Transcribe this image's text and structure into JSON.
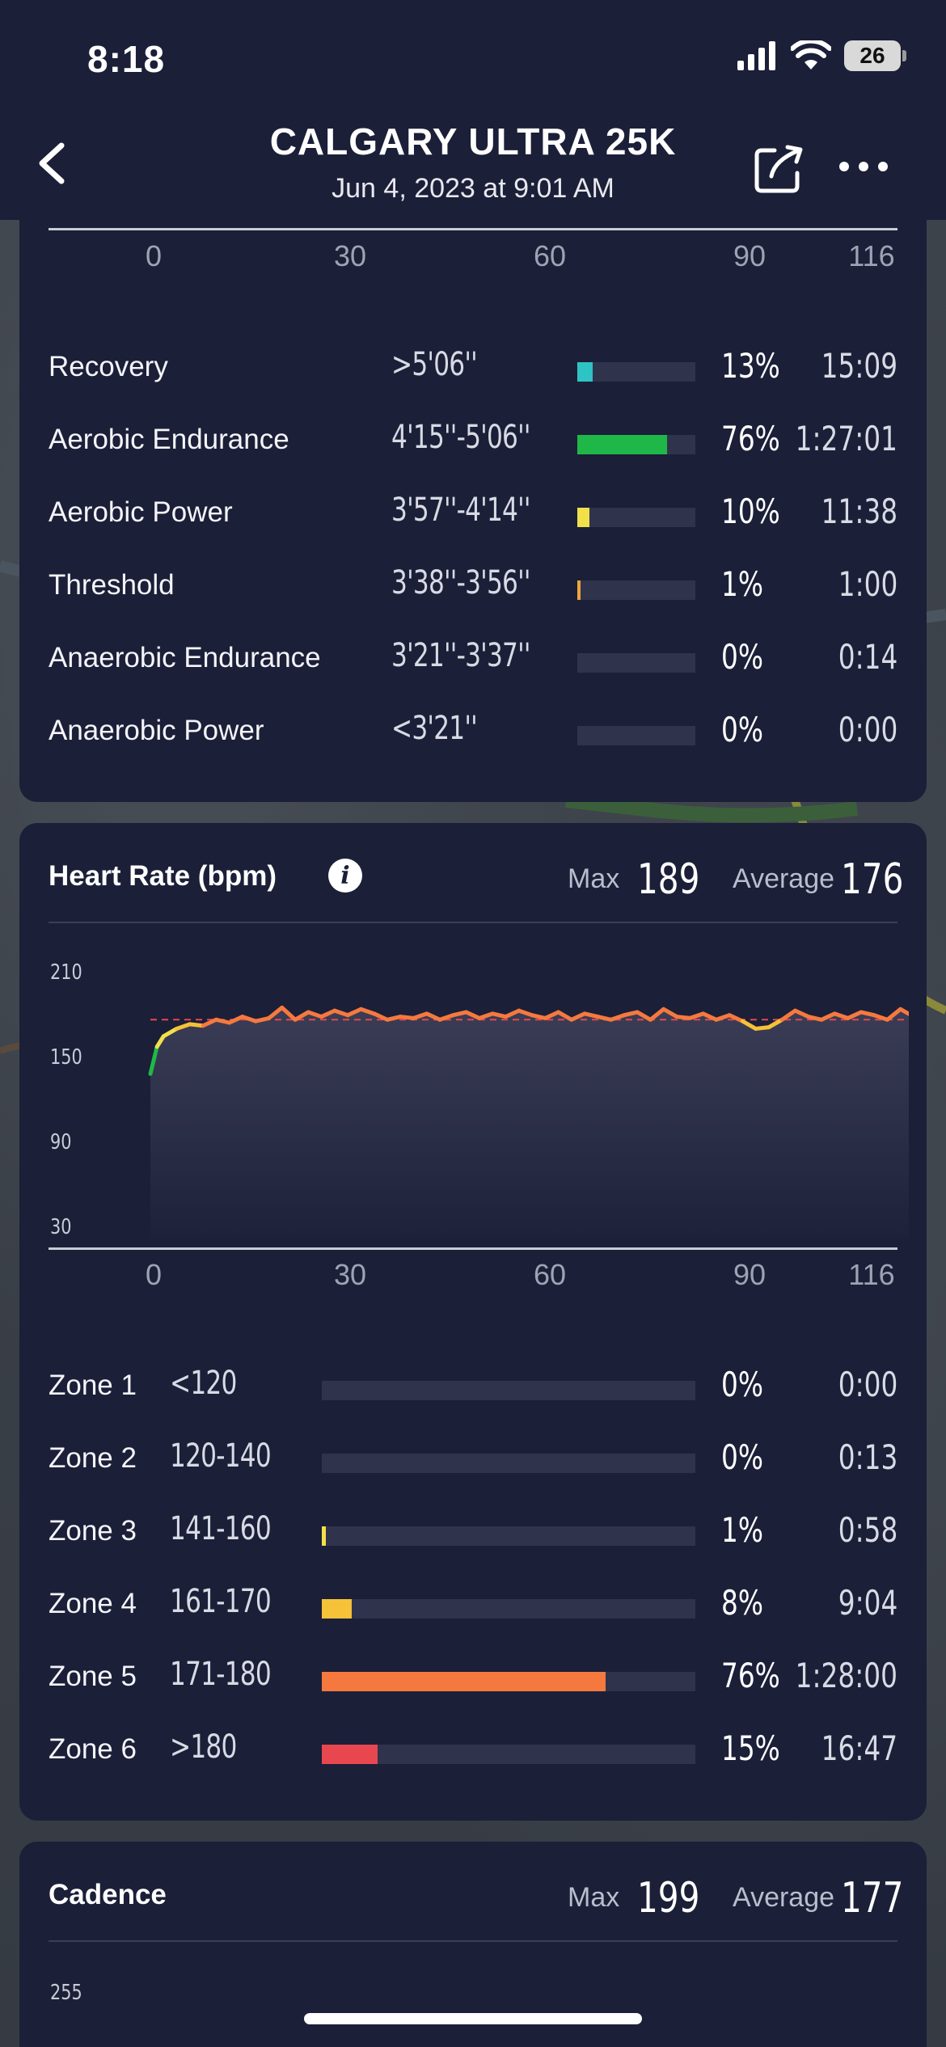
{
  "status_bar": {
    "time": "8:18",
    "battery": "26"
  },
  "nav": {
    "title": "CALGARY ULTRA 25K",
    "subtitle": "Jun 4, 2023 at 9:01 AM"
  },
  "pace_card": {
    "axis_ticks": [
      "0",
      "30",
      "60",
      "90",
      "116"
    ],
    "zones": [
      {
        "label": "Recovery",
        "range": ">5'06''",
        "pct": "13%",
        "fraction": 0.13,
        "time": "15:09",
        "color": "#2ec4c4"
      },
      {
        "label": "Aerobic Endurance",
        "range": "4'15''-5'06''",
        "pct": "76%",
        "fraction": 0.76,
        "time": "1:27:01",
        "color": "#1fb848"
      },
      {
        "label": "Aerobic Power",
        "range": "3'57''-4'14''",
        "pct": "10%",
        "fraction": 0.1,
        "time": "11:38",
        "color": "#f1e04a"
      },
      {
        "label": "Threshold",
        "range": "3'38''-3'56''",
        "pct": "1%",
        "fraction": 0.01,
        "time": "1:00",
        "color": "#f0a53a"
      },
      {
        "label": "Anaerobic Endurance",
        "range": "3'21''-3'37''",
        "pct": "0%",
        "fraction": 0,
        "time": "0:14",
        "color": "#f07a3a"
      },
      {
        "label": "Anaerobic Power",
        "range": "<3'21''",
        "pct": "0%",
        "fraction": 0,
        "time": "0:00",
        "color": "#e8474f"
      }
    ]
  },
  "hr_card": {
    "title": "Heart Rate (bpm)",
    "max_label": "Max",
    "max_value": "189",
    "avg_label": "Average",
    "avg_value": "176",
    "y_ticks": [
      "210",
      "150",
      "90",
      "30"
    ],
    "axis_ticks": [
      "0",
      "30",
      "60",
      "90",
      "116"
    ],
    "zones": [
      {
        "label": "Zone 1",
        "range": "<120",
        "pct": "0%",
        "fraction": 0,
        "time": "0:00",
        "color": "#2ec4c4"
      },
      {
        "label": "Zone 2",
        "range": "120-140",
        "pct": "0%",
        "fraction": 0,
        "time": "0:13",
        "color": "#1fb848"
      },
      {
        "label": "Zone 3",
        "range": "141-160",
        "pct": "1%",
        "fraction": 0.01,
        "time": "0:58",
        "color": "#f1e04a"
      },
      {
        "label": "Zone 4",
        "range": "161-170",
        "pct": "8%",
        "fraction": 0.08,
        "time": "9:04",
        "color": "#f5c238"
      },
      {
        "label": "Zone 5",
        "range": "171-180",
        "pct": "76%",
        "fraction": 0.76,
        "time": "1:28:00",
        "color": "#f5793e"
      },
      {
        "label": "Zone 6",
        "range": ">180",
        "pct": "15%",
        "fraction": 0.15,
        "time": "16:47",
        "color": "#e8474f"
      }
    ]
  },
  "cad_card": {
    "title": "Cadence",
    "max_label": "Max",
    "max_value": "199",
    "avg_label": "Average",
    "avg_value": "177",
    "y_tick_top": "255"
  },
  "chart_data": {
    "type": "line",
    "ylim": [
      30,
      210
    ],
    "xlim": [
      0,
      116
    ],
    "x": [
      0,
      1,
      2,
      4,
      6,
      8,
      10,
      12,
      14,
      16,
      18,
      20,
      22,
      24,
      26,
      28,
      30,
      32,
      34,
      36,
      38,
      40,
      42,
      44,
      46,
      48,
      50,
      52,
      54,
      56,
      58,
      60,
      62,
      64,
      66,
      68,
      70,
      72,
      74,
      76,
      78,
      80,
      82,
      84,
      86,
      88,
      90,
      92,
      94,
      96,
      98,
      100,
      102,
      104,
      106,
      108,
      110,
      112,
      114,
      116
    ],
    "series": [
      {
        "values": [
          140,
          158,
          165,
          170,
          173,
          172,
          176,
          174,
          178,
          175,
          177,
          184,
          176,
          181,
          178,
          182,
          179,
          183,
          180,
          176,
          178,
          177,
          180,
          176,
          179,
          181,
          177,
          180,
          178,
          182,
          179,
          177,
          181,
          176,
          180,
          178,
          176,
          179,
          181,
          176,
          183,
          178,
          177,
          180,
          176,
          179,
          175,
          170,
          171,
          176,
          182,
          178,
          176,
          180,
          177,
          181,
          179,
          176,
          183,
          178
        ]
      }
    ],
    "average_line": 176
  }
}
